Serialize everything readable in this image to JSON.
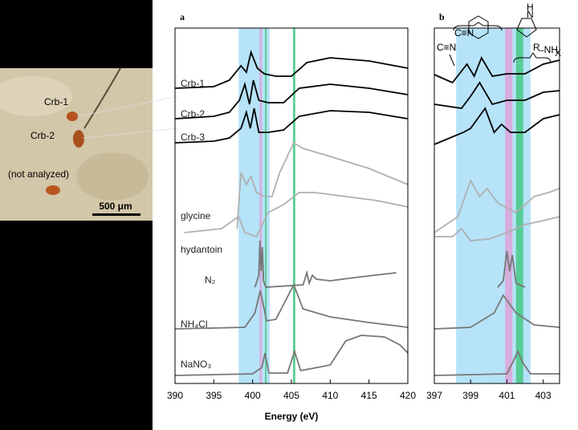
{
  "image": {
    "labels": [
      "Crb-1",
      "Crb-2",
      "(not analyzed)"
    ],
    "scale_bar": "500 μm"
  },
  "chart_data": [
    {
      "type": "line",
      "title": "a",
      "xlabel": "Energy (eV)",
      "xlim": [
        390,
        420
      ],
      "xticks": [
        390,
        395,
        400,
        405,
        410,
        415,
        420
      ],
      "ylim": [
        0,
        443
      ],
      "bands": [
        {
          "x": [
            398.2,
            402.2
          ],
          "color": "#aee0f7"
        },
        {
          "x": [
            400.9,
            401.2
          ],
          "color": "#d9a6d9"
        },
        {
          "x": [
            401.6,
            401.8
          ],
          "color": "#4cc98a"
        },
        {
          "x": [
            405.2,
            405.5
          ],
          "color": "#4cc98a"
        }
      ],
      "series": [
        {
          "name": "Crb-1",
          "color": "#000000",
          "x": [
            390,
            395,
            397,
            398.5,
            399.2,
            399.8,
            400.6,
            401.5,
            403,
            405,
            407,
            410,
            415,
            420
          ],
          "values": [
            368,
            370,
            378,
            396,
            388,
            413,
            393,
            386,
            383,
            383,
            400,
            406,
            402,
            393
          ]
        },
        {
          "name": "Crb-2",
          "color": "#000000",
          "x": [
            390,
            395,
            397,
            398.3,
            399,
            399.6,
            400.1,
            400.8,
            402,
            404,
            406,
            410,
            415,
            420
          ],
          "values": [
            330,
            333,
            338,
            353,
            373,
            348,
            378,
            353,
            350,
            350,
            368,
            373,
            368,
            360
          ]
        },
        {
          "name": "Crb-3",
          "color": "#000000",
          "x": [
            390,
            395,
            397,
            398.5,
            399.2,
            399.7,
            400.2,
            400.8,
            402,
            404,
            406,
            410,
            415,
            420
          ],
          "values": [
            300,
            302,
            306,
            318,
            338,
            318,
            343,
            313,
            313,
            316,
            333,
            340,
            338,
            330
          ]
        },
        {
          "name": "glycine",
          "color": "#b0b0b0",
          "x": [
            398,
            398.5,
            399.2,
            399.8,
            400.5,
            401.5,
            402.5,
            403.5,
            405.3,
            406.5,
            410,
            415,
            420
          ],
          "values": [
            193,
            263,
            248,
            258,
            238,
            233,
            233,
            263,
            300,
            293,
            283,
            268,
            248
          ]
        },
        {
          "name": "hydantoin",
          "color": "#b0b0b0",
          "x": [
            391.2,
            396,
            398.2,
            399,
            400.5,
            402,
            404,
            406,
            408,
            412,
            416,
            420
          ],
          "values": [
            188,
            193,
            208,
            188,
            183,
            213,
            223,
            238,
            238,
            233,
            228,
            220
          ]
        },
        {
          "name": "N₂",
          "color": "#777777",
          "x": [
            400.3,
            400.8,
            400.95,
            401.1,
            401.25,
            401.4,
            401.7,
            406.5,
            407,
            407.3,
            407.7,
            408.2,
            410,
            414,
            418.5
          ],
          "values": [
            120,
            135,
            178,
            140,
            170,
            128,
            120,
            123,
            138,
            125,
            135,
            130,
            128,
            133,
            138
          ]
        },
        {
          "name": "NH₄Cl",
          "color": "#777777",
          "x": [
            390,
            399,
            400.3,
            401,
            401.8,
            403,
            405.3,
            406.5,
            410,
            415,
            420
          ],
          "values": [
            68,
            70,
            88,
            116,
            78,
            80,
            123,
            93,
            83,
            76,
            70
          ]
        },
        {
          "name": "NaNO₃",
          "color": "#777777",
          "x": [
            390,
            400,
            401.2,
            401.6,
            402.1,
            404.5,
            405.4,
            406.2,
            410,
            412,
            414,
            417,
            419,
            420
          ],
          "values": [
            10,
            12,
            20,
            38,
            13,
            13,
            40,
            16,
            23,
            53,
            60,
            58,
            48,
            38
          ]
        }
      ]
    },
    {
      "type": "line",
      "title": "b",
      "xlim": [
        397,
        403.9
      ],
      "xticks": [
        397,
        399,
        401,
        403
      ],
      "ylim": [
        0,
        443
      ],
      "annotations": [
        "C≡N",
        "C≡N",
        "N",
        "H",
        "R",
        "–NH",
        "X"
      ],
      "bands": [
        {
          "x": [
            398.2,
            402.3
          ],
          "color": "#aee0f7"
        },
        {
          "x": [
            400.9,
            401.3
          ],
          "color": "#d9a6d9"
        },
        {
          "x": [
            401.5,
            401.9
          ],
          "color": "#4cc98a"
        }
      ],
      "series": [
        {
          "color": "#000000",
          "x": [
            397,
            398,
            398.8,
            399.2,
            399.6,
            400.2,
            401,
            402,
            403,
            403.9
          ],
          "values": [
            385,
            375,
            398,
            383,
            406,
            383,
            386,
            386,
            398,
            403
          ]
        },
        {
          "color": "#000000",
          "x": [
            397,
            398.5,
            399,
            399.5,
            400.2,
            401,
            402,
            403,
            403.9
          ],
          "values": [
            348,
            343,
            358,
            375,
            348,
            353,
            353,
            363,
            365
          ]
        },
        {
          "color": "#000000",
          "x": [
            397,
            398.6,
            399,
            399.8,
            400.3,
            400.7,
            401.2,
            402,
            403,
            403.9
          ],
          "values": [
            298,
            313,
            318,
            343,
            313,
            323,
            313,
            313,
            330,
            335
          ]
        },
        {
          "color": "#b0b0b0",
          "x": [
            397,
            398.3,
            399,
            399.5,
            399.9,
            400.5,
            401.5,
            402.5,
            403.3,
            403.9
          ],
          "values": [
            188,
            208,
            253,
            233,
            243,
            225,
            213,
            233,
            238,
            243
          ]
        },
        {
          "color": "#b0b0b0",
          "x": [
            397,
            398,
            398.5,
            399,
            400,
            401,
            402,
            403,
            403.9
          ],
          "values": [
            183,
            183,
            193,
            178,
            180,
            188,
            198,
            203,
            208
          ]
        },
        {
          "color": "#777777",
          "x": [
            400.5,
            400.8,
            401,
            401.15,
            401.3,
            401.5,
            402
          ],
          "values": [
            120,
            128,
            165,
            140,
            160,
            125,
            120
          ]
        },
        {
          "color": "#777777",
          "x": [
            397,
            399,
            400.3,
            400.8,
            401.5,
            402.5,
            403.9
          ],
          "values": [
            68,
            70,
            88,
            110,
            88,
            73,
            70
          ]
        },
        {
          "color": "#777777",
          "x": [
            397,
            401,
            401.4,
            401.6,
            401.9,
            402.3,
            403.9
          ],
          "values": [
            10,
            12,
            30,
            40,
            25,
            12,
            12
          ]
        }
      ]
    }
  ]
}
